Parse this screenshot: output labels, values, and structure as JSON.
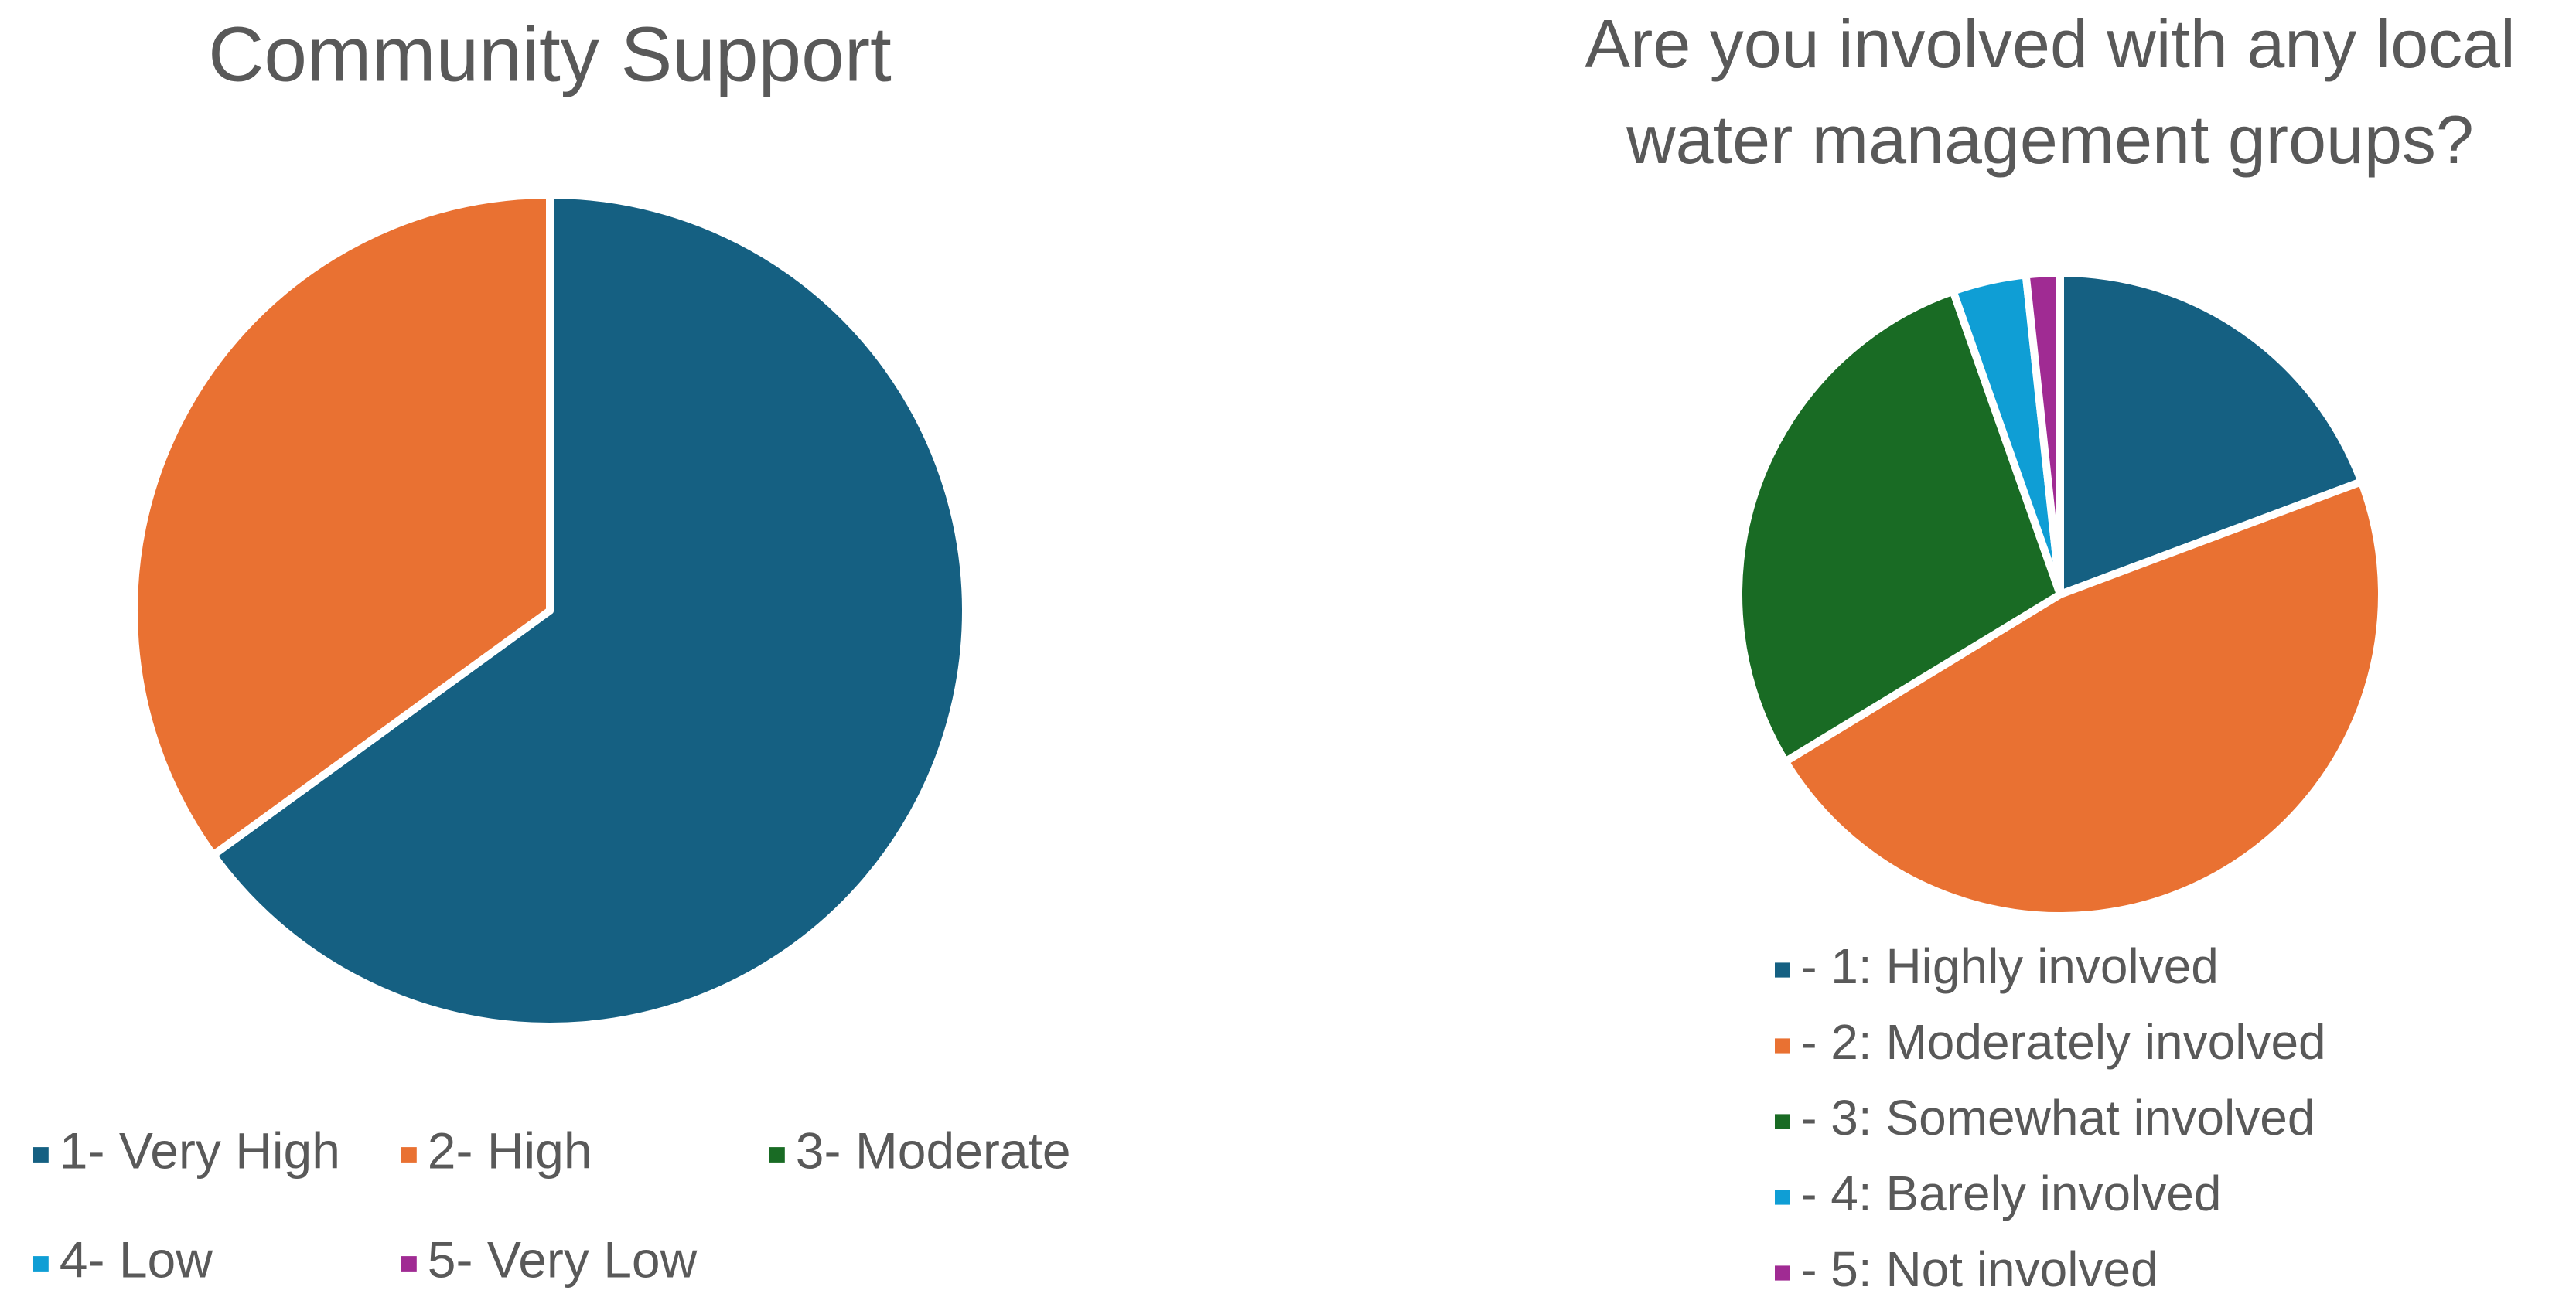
{
  "chart_data": [
    {
      "type": "pie",
      "title": "Community Support",
      "categories": [
        "1- Very High",
        "2- High",
        "3- Moderate",
        "4- Low",
        "5- Very Low"
      ],
      "values": [
        65,
        35,
        0,
        0,
        0
      ],
      "colors": [
        "#156082",
        "#e97132",
        "#196b24",
        "#0f9ed5",
        "#a02b93"
      ],
      "legend": "bottom"
    },
    {
      "type": "pie",
      "title": [
        "Are you involved with any local",
        "water management groups?"
      ],
      "categories": [
        "- 1: Highly involved",
        "- 2: Moderately involved",
        "- 3: Somewhat involved",
        "- 4: Barely involved",
        "- 5: Not involved"
      ],
      "values": [
        19.3,
        47,
        28.3,
        3.7,
        1.7
      ],
      "colors": [
        "#156082",
        "#e97132",
        "#196b24",
        "#0f9ed5",
        "#a02b93"
      ],
      "legend": "bottom"
    }
  ]
}
